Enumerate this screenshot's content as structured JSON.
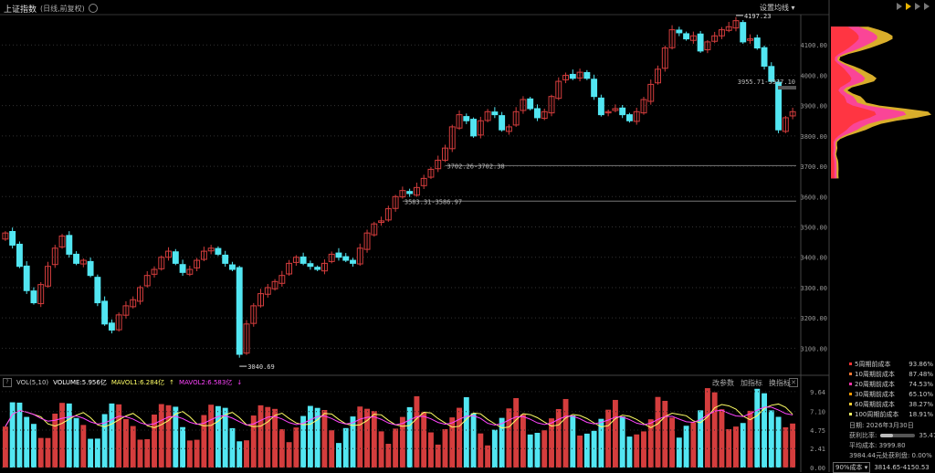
{
  "header": {
    "title": "上证指数",
    "subtitle": "(日线,前复权)",
    "ma_settings_label": "设置均线 ▾"
  },
  "colors": {
    "up": "#d43d3d",
    "down": "#52e6f2",
    "grid": "#333333"
  },
  "chart_data": {
    "type": "candlestick",
    "ylim": [
      3050,
      4200
    ],
    "y_ticks": [
      "4100.00",
      "4000.00",
      "3900.00",
      "3800.00",
      "3700.00",
      "3600.00",
      "3500.00",
      "3400.00",
      "3300.00",
      "3200.00",
      "3100.00"
    ],
    "y_tick_values": [
      4100,
      4000,
      3900,
      3800,
      3700,
      3600,
      3500,
      3400,
      3300,
      3200,
      3100
    ],
    "series_close": [
      3480,
      3440,
      3370,
      3290,
      3250,
      3310,
      3370,
      3430,
      3470,
      3410,
      3380,
      3390,
      3340,
      3250,
      3180,
      3160,
      3210,
      3240,
      3260,
      3300,
      3340,
      3360,
      3400,
      3420,
      3380,
      3350,
      3360,
      3390,
      3420,
      3430,
      3410,
      3380,
      3360,
      3080,
      3180,
      3240,
      3280,
      3300,
      3320,
      3340,
      3380,
      3400,
      3380,
      3370,
      3360,
      3380,
      3410,
      3400,
      3390,
      3380,
      3430,
      3480,
      3510,
      3520,
      3560,
      3600,
      3620,
      3610,
      3630,
      3660,
      3690,
      3720,
      3760,
      3830,
      3870,
      3850,
      3800,
      3850,
      3880,
      3870,
      3820,
      3830,
      3880,
      3920,
      3890,
      3860,
      3880,
      3930,
      3980,
      4000,
      3990,
      4010,
      3990,
      3930,
      3870,
      3880,
      3890,
      3870,
      3850,
      3880,
      3920,
      3970,
      4020,
      4090,
      4150,
      4140,
      4120,
      4130,
      4080,
      4110,
      4130,
      4150,
      4160,
      4180,
      4110,
      4120,
      4090,
      4030,
      3980,
      3820,
      3860,
      3880
    ],
    "annotations": [
      {
        "label": "4197.23",
        "idx": 103,
        "y": 4197.23,
        "side": "right"
      },
      {
        "label": "3040.69",
        "idx": 33,
        "y": 3040.69,
        "side": "right"
      },
      {
        "label": "3955.71-3937.10",
        "idx": 103,
        "y": 3950,
        "side": "box"
      },
      {
        "label": "3702.26-3702.38",
        "idx": 62,
        "y": 3702,
        "side": "hline"
      },
      {
        "label": "3583.31-3586.97",
        "idx": 56,
        "y": 3585,
        "side": "hline"
      }
    ]
  },
  "volume": {
    "label": "VOL(5,10)",
    "volume_text": "VOLUME:5.956亿",
    "mavol1_text": "MAVOL1:6.284亿",
    "mavol2_text": "MAVOL2:6.583亿",
    "y_ticks": [
      "9.64",
      "7.10",
      "4.75",
      "2.41",
      "0.00"
    ],
    "ylim": [
      0,
      10.2
    ],
    "tools": [
      "改参数",
      "加指标",
      "换指标"
    ]
  },
  "chips": {
    "items": [
      {
        "name": "5周期前成本",
        "value": "93.86%",
        "color": "#ff3333"
      },
      {
        "name": "10周期前成本",
        "value": "87.48%",
        "color": "#ff7733"
      },
      {
        "name": "20周期前成本",
        "value": "74.53%",
        "color": "#ff33aa"
      },
      {
        "name": "30周期前成本",
        "value": "65.10%",
        "color": "#ff9900"
      },
      {
        "name": "60周期前成本",
        "value": "38.27%",
        "color": "#ffcc33"
      },
      {
        "name": "100周期前成本",
        "value": "18.91%",
        "color": "#ffff66"
      }
    ],
    "date_label": "日期: 2026年3月30日",
    "profit_label": "获利比率:",
    "profit_value": "35.47%",
    "profit_fraction": 0.3547,
    "avg_cost": "平均成本: 3999.80",
    "profit_line": "3984.44元处获利盘: 0.00%",
    "footer_select": "90%成本",
    "footer_range": "3814.65-4150.53"
  }
}
